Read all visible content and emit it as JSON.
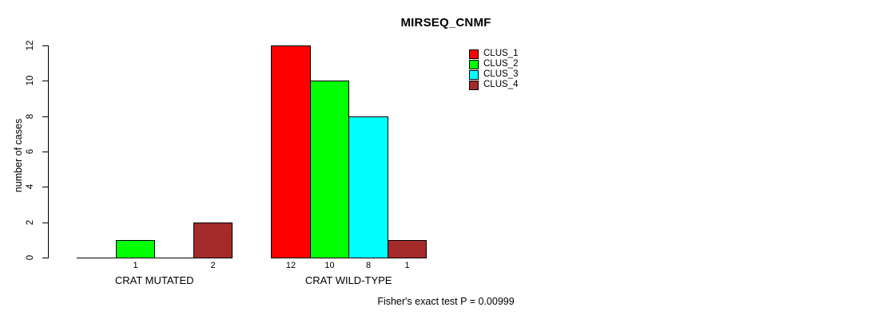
{
  "chart_data": {
    "type": "bar",
    "title": "MIRSEQ_CNMF",
    "ylabel": "number of cases",
    "xlabel": "",
    "ylim": [
      0,
      12
    ],
    "yticks": [
      0,
      2,
      4,
      6,
      8,
      10,
      12
    ],
    "grid": false,
    "legend_position": "top-right",
    "axis_color": "#000000",
    "background_color": "#ffffff",
    "series": [
      {
        "name": "CLUS_1",
        "color": "#FF0000"
      },
      {
        "name": "CLUS_2",
        "color": "#00FF00"
      },
      {
        "name": "CLUS_3",
        "color": "#00FFFF"
      },
      {
        "name": "CLUS_4",
        "color": "#A52A2A"
      }
    ],
    "groups": [
      {
        "label": "CRAT MUTATED",
        "values": [
          0,
          1,
          0,
          2
        ]
      },
      {
        "label": "CRAT WILD-TYPE",
        "values": [
          12,
          10,
          8,
          1
        ]
      }
    ],
    "value_labels_shown": "nonzero-only",
    "footnote": "Fisher's exact test P = 0.00999"
  }
}
